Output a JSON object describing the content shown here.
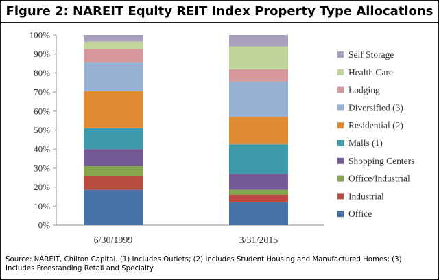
{
  "title": "Figure 2: NAREIT Equity REIT Index Property Type Allocations",
  "source": "Source: NAREIT, Chilton Capital. (1) Includes Outlets; (2) Includes Student Housing and Manufactured Homes; (3) Includes Freestanding Retail and Specialty",
  "chart_data": {
    "type": "bar",
    "stacked": true,
    "categories": [
      "6/30/1999",
      "3/31/2015"
    ],
    "ylim": [
      0,
      100
    ],
    "yticks": [
      "0%",
      "10%",
      "20%",
      "30%",
      "40%",
      "50%",
      "60%",
      "70%",
      "80%",
      "90%",
      "100%"
    ],
    "legend_position": "right",
    "series": [
      {
        "name": "Office",
        "color": "#4472a8",
        "values": [
          18.5,
          12
        ]
      },
      {
        "name": "Industrial",
        "color": "#b94a42",
        "values": [
          7.5,
          4
        ]
      },
      {
        "name": "Office/Industrial",
        "color": "#86a64d",
        "values": [
          5,
          2.5
        ]
      },
      {
        "name": "Shopping Centers",
        "color": "#735a94",
        "values": [
          9,
          8.5
        ]
      },
      {
        "name": "Malls (1)",
        "color": "#3d9aaa",
        "values": [
          11,
          15.5
        ]
      },
      {
        "name": "Residential (2)",
        "color": "#e08a36",
        "values": [
          19.5,
          14.5
        ]
      },
      {
        "name": "Diversified (3)",
        "color": "#96b1d4",
        "values": [
          15,
          18.5
        ]
      },
      {
        "name": "Lodging",
        "color": "#d6989a",
        "values": [
          7,
          6.5
        ]
      },
      {
        "name": "Health Care",
        "color": "#c0d59a",
        "values": [
          4,
          12
        ]
      },
      {
        "name": "Self Storage",
        "color": "#aaa0bf",
        "values": [
          3.5,
          6
        ]
      }
    ]
  }
}
